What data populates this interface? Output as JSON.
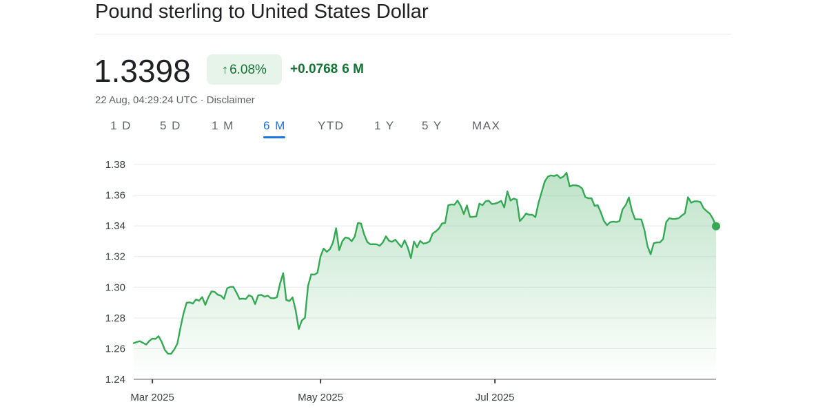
{
  "header": {
    "title": "Pound sterling to United States Dollar",
    "price": "1.3398",
    "change_percent": "6.08%",
    "change_arrow": "↑",
    "change_value": "+0.0768",
    "change_period": "6 M",
    "timestamp": "22 Aug, 04:29:24 UTC",
    "separator": " · ",
    "disclaimer": "Disclaimer"
  },
  "tabs": [
    "1 D",
    "5 D",
    "1 M",
    "6 M",
    "YTD",
    "1 Y",
    "5 Y",
    "MAX"
  ],
  "active_tab": "6 M",
  "colors": {
    "line": "#34a853",
    "positive_text": "#137333",
    "badge_bg": "#e6f4ea",
    "active_tab": "#1a73e8",
    "grid": "#e8eaed"
  },
  "chart_data": {
    "type": "area",
    "x_axis": "time",
    "x_ticks": [
      "Mar 2025",
      "May 2025",
      "Jul 2025"
    ],
    "y_ticks": [
      "1.24",
      "1.26",
      "1.28",
      "1.30",
      "1.32",
      "1.34",
      "1.36",
      "1.38"
    ],
    "ylim": [
      1.24,
      1.38
    ],
    "grid": "horizontal",
    "series": [
      {
        "values": [
          1.2635,
          1.2643,
          1.2648,
          1.2637,
          1.2626,
          1.265,
          1.2665,
          1.2663,
          1.2681,
          1.2643,
          1.2591,
          1.2567,
          1.2566,
          1.2593,
          1.2632,
          1.2735,
          1.2829,
          1.2899,
          1.2901,
          1.2893,
          1.2921,
          1.2912,
          1.2936,
          1.2885,
          1.2935,
          1.2973,
          1.297,
          1.2951,
          1.2945,
          1.2924,
          1.2993,
          1.3002,
          1.3002,
          1.2966,
          1.2923,
          1.2926,
          1.2923,
          1.2948,
          1.2938,
          1.289,
          1.2948,
          1.295,
          1.2938,
          1.2945,
          1.293,
          1.2928,
          1.2935,
          1.3024,
          1.3092,
          1.2917,
          1.291,
          1.2934,
          1.285,
          1.2728,
          1.2783,
          1.2801,
          1.3009,
          1.3084,
          1.3082,
          1.3094,
          1.3201,
          1.3252,
          1.3231,
          1.3248,
          1.3292,
          1.3385,
          1.3242,
          1.33,
          1.3325,
          1.332,
          1.33,
          1.333,
          1.3418,
          1.3415,
          1.3344,
          1.3295,
          1.328,
          1.3281,
          1.328,
          1.327,
          1.3292,
          1.3332,
          1.3303,
          1.3296,
          1.331,
          1.3285,
          1.3262,
          1.3306,
          1.326,
          1.319,
          1.3298,
          1.3261,
          1.3302,
          1.3285,
          1.3288,
          1.3299,
          1.335,
          1.3364,
          1.3382,
          1.3416,
          1.3419,
          1.3534,
          1.354,
          1.3538,
          1.3565,
          1.353,
          1.3477,
          1.3533,
          1.3458,
          1.3459,
          1.3462,
          1.3545,
          1.3535,
          1.356,
          1.3565,
          1.3542,
          1.3545,
          1.3552,
          1.3563,
          1.352,
          1.3625,
          1.3565,
          1.3578,
          1.3571,
          1.3431,
          1.3453,
          1.3481,
          1.3472,
          1.3473,
          1.3457,
          1.355,
          1.3621,
          1.369,
          1.3721,
          1.3729,
          1.3725,
          1.3732,
          1.3711,
          1.3722,
          1.3746,
          1.3657,
          1.3665,
          1.3664,
          1.3659,
          1.3644,
          1.3588,
          1.358,
          1.358,
          1.353,
          1.3535,
          1.3488,
          1.3432,
          1.3405,
          1.3424,
          1.3428,
          1.3425,
          1.3431,
          1.3508,
          1.3536,
          1.3585,
          1.3498,
          1.3443,
          1.3443,
          1.3442,
          1.3373,
          1.3267,
          1.3215,
          1.3287,
          1.3292,
          1.3293,
          1.3314,
          1.3425,
          1.345,
          1.3445,
          1.3446,
          1.345,
          1.3467,
          1.3482,
          1.3587,
          1.3551,
          1.356,
          1.356,
          1.3555,
          1.3515,
          1.3496,
          1.348,
          1.3446,
          1.3398
        ]
      }
    ]
  }
}
